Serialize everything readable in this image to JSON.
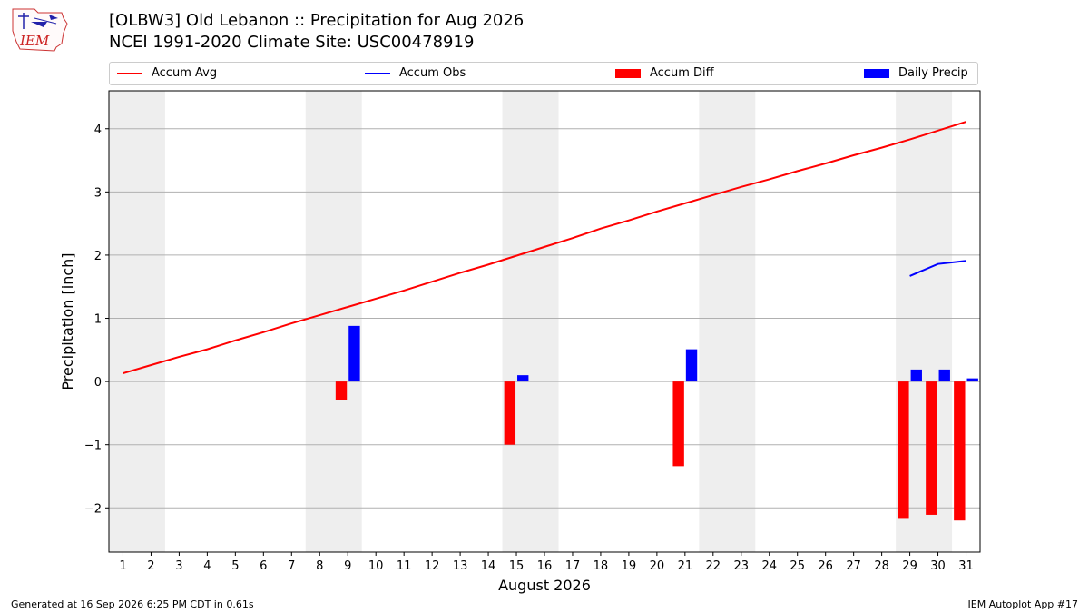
{
  "title_line1": "[OLBW3] Old Lebanon :: Precipitation for Aug 2026",
  "title_line2": "NCEI 1991-2020 Climate Site: USC00478919",
  "logo_text": "IEM",
  "footer_left": "Generated at 16 Sep 2026 6:25 PM CDT in 0.61s",
  "footer_right": "IEM Autoplot App #17",
  "colors": {
    "avg": "#ff0000",
    "obs": "#0000ff",
    "diff": "#ff0000",
    "daily": "#0000ff",
    "weekend": "#eeeeee",
    "grid": "#b0b0b0"
  },
  "chart_data": {
    "type": "bar",
    "xlabel": "August 2026",
    "ylabel": "Precipitation [inch]",
    "xlim": [
      0.5,
      31.5
    ],
    "ylim": [
      -2.7,
      4.6
    ],
    "yticks": [
      -2,
      -1,
      0,
      1,
      2,
      3,
      4
    ],
    "grid": "y",
    "legend_position": "top",
    "categories": [
      1,
      2,
      3,
      4,
      5,
      6,
      7,
      8,
      9,
      10,
      11,
      12,
      13,
      14,
      15,
      16,
      17,
      18,
      19,
      20,
      21,
      22,
      23,
      24,
      25,
      26,
      27,
      28,
      29,
      30,
      31
    ],
    "weekend_days": [
      [
        1,
        2
      ],
      [
        8,
        9
      ],
      [
        15,
        16
      ],
      [
        22,
        23
      ],
      [
        29,
        30
      ]
    ],
    "series": [
      {
        "name": "Accum Avg",
        "type": "line",
        "x": [
          1,
          2,
          3,
          4,
          5,
          6,
          7,
          8,
          9,
          10,
          11,
          12,
          13,
          14,
          15,
          16,
          17,
          18,
          19,
          20,
          21,
          22,
          23,
          24,
          25,
          26,
          27,
          28,
          29,
          30,
          31
        ],
        "values": [
          0.13,
          0.26,
          0.39,
          0.51,
          0.65,
          0.78,
          0.92,
          1.05,
          1.18,
          1.31,
          1.44,
          1.58,
          1.72,
          1.85,
          1.99,
          2.13,
          2.27,
          2.42,
          2.55,
          2.69,
          2.82,
          2.95,
          3.08,
          3.2,
          3.33,
          3.45,
          3.58,
          3.7,
          3.83,
          3.97,
          4.11
        ]
      },
      {
        "name": "Accum Obs",
        "type": "line",
        "x": [
          29,
          30,
          31
        ],
        "values": [
          1.67,
          1.86,
          1.91
        ]
      },
      {
        "name": "Accum Diff",
        "type": "bar",
        "x": [
          9,
          15,
          21,
          29,
          30,
          31
        ],
        "values": [
          -0.3,
          -1.0,
          -1.34,
          -2.16,
          -2.11,
          -2.2
        ]
      },
      {
        "name": "Daily Precip",
        "type": "bar",
        "x": [
          9,
          15,
          21,
          29,
          30,
          31
        ],
        "values": [
          0.88,
          0.1,
          0.51,
          0.19,
          0.19,
          0.05
        ]
      }
    ]
  }
}
